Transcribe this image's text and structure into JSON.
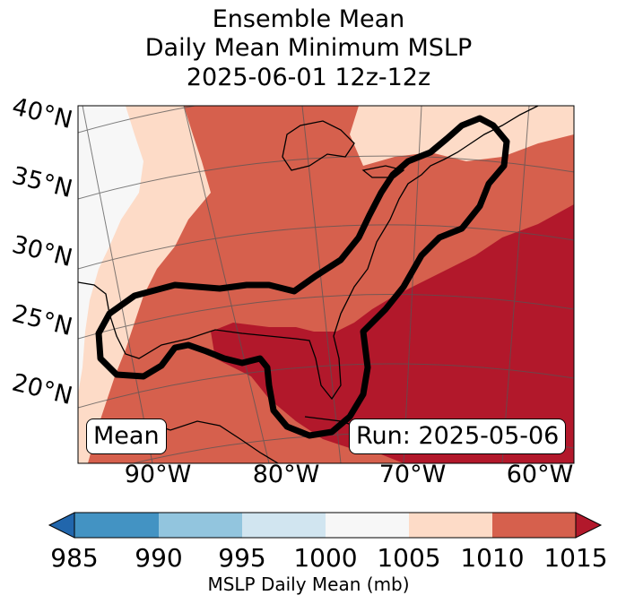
{
  "title": {
    "line1": "Ensemble Mean",
    "line2": "Daily Mean Minimum MSLP",
    "line3": "2025-06-01 12z-12z"
  },
  "lat_labels": [
    "40°N",
    "35°N",
    "30°N",
    "25°N",
    "20°N"
  ],
  "lon_labels": [
    "90°W",
    "80°W",
    "70°W",
    "60°W"
  ],
  "annotations": {
    "left": "Mean",
    "right": "Run: 2025-05-06"
  },
  "colorbar": {
    "ticks": [
      "985",
      "990",
      "995",
      "1000",
      "1005",
      "1010",
      "1015"
    ],
    "label": "MSLP Daily Mean (mb)",
    "colors": [
      "#2166ac",
      "#4393c3",
      "#92c5de",
      "#d1e5f0",
      "#f7f7f7",
      "#fddbc7",
      "#d6604d",
      "#b2182b"
    ]
  },
  "map_colors": {
    "lt1005": "#f7f7f7",
    "b1005_1010": "#fddbc7",
    "b1010_1015": "#d6604d",
    "gt1015": "#b2182b"
  }
}
